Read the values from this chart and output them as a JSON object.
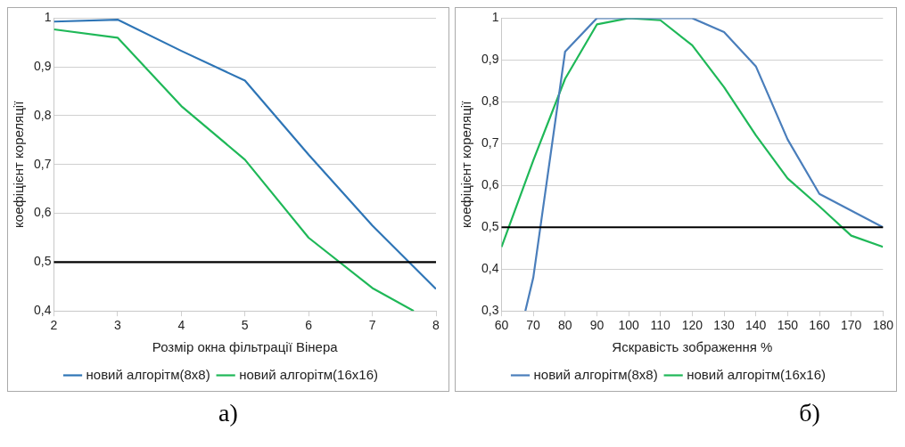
{
  "chart_data": [
    {
      "type": "line",
      "xlabel": "Розмір окна фільтрації Вінера",
      "ylabel": "коефіцієнт кореляції",
      "x": [
        2,
        3,
        4,
        5,
        6,
        7,
        8
      ],
      "xlim": [
        2,
        8
      ],
      "xticks": [
        2,
        3,
        4,
        5,
        6,
        7,
        8
      ],
      "ylim": [
        0.4,
        1
      ],
      "yticks": [
        {
          "value": 0.4,
          "label": "0,4"
        },
        {
          "value": 0.5,
          "label": "0,5"
        },
        {
          "value": 0.6,
          "label": "0,6"
        },
        {
          "value": 0.7,
          "label": "0,7"
        },
        {
          "value": 0.8,
          "label": "0,8"
        },
        {
          "value": 0.9,
          "label": "0,9"
        },
        1
      ],
      "grid": "y",
      "legend": "bottom",
      "marker": "none",
      "line_style": "solid",
      "series": [
        {
          "name": "новий алгорітм(8x8)",
          "color": "#2e75b6",
          "values": [
            0.993,
            0.997,
            0.933,
            0.872,
            0.72,
            0.575,
            0.445
          ]
        },
        {
          "name": "новий алгорітм(16x16)",
          "color": "#1fb858",
          "x": [
            2,
            3,
            4,
            5,
            6,
            7,
            7.65
          ],
          "values": [
            0.977,
            0.96,
            0.82,
            0.71,
            0.55,
            0.447,
            0.4
          ]
        }
      ],
      "ref_lines": [
        {
          "axis": "y",
          "value": 0.5,
          "color": "#000000"
        }
      ],
      "annotations": [
        "а)"
      ]
    },
    {
      "type": "line",
      "xlabel": "Яскравість зображення %",
      "ylabel": "коефіцієнт кореляції",
      "x": [
        60,
        70,
        80,
        90,
        100,
        110,
        120,
        130,
        140,
        150,
        160,
        170,
        180
      ],
      "xlim": [
        60,
        180
      ],
      "xticks": [
        60,
        70,
        80,
        90,
        100,
        110,
        120,
        130,
        140,
        150,
        160,
        170,
        180
      ],
      "ylim": [
        0.3,
        1
      ],
      "yticks": [
        {
          "value": 0.3,
          "label": "0,3"
        },
        {
          "value": 0.4,
          "label": "0,4"
        },
        {
          "value": 0.5,
          "label": "0,5"
        },
        {
          "value": 0.6,
          "label": "0,6"
        },
        {
          "value": 0.7,
          "label": "0,7"
        },
        {
          "value": 0.8,
          "label": "0,8"
        },
        {
          "value": 0.9,
          "label": "0,9"
        },
        1
      ],
      "grid": "y",
      "legend": "bottom",
      "marker": "none",
      "line_style": "solid",
      "series": [
        {
          "name": "новий алгорітм(8x8)",
          "color": "#4a7ebb",
          "x": [
            67.5,
            70,
            80,
            90,
            100,
            110,
            120,
            130,
            140,
            150,
            160,
            170,
            180
          ],
          "values": [
            0.3,
            0.38,
            0.92,
            1.0,
            1.0,
            1.0,
            1.0,
            0.967,
            0.885,
            0.71,
            0.58,
            0.54,
            0.5
          ]
        },
        {
          "name": "новий алгорітм(16x16)",
          "color": "#1fb858",
          "values": [
            0.453,
            0.66,
            0.855,
            0.985,
            1.0,
            0.995,
            0.935,
            0.835,
            0.72,
            0.617,
            0.55,
            0.48,
            0.453
          ]
        }
      ],
      "ref_lines": [
        {
          "axis": "y",
          "value": 0.5,
          "color": "#000000"
        }
      ],
      "annotations": [
        "б)"
      ]
    }
  ]
}
